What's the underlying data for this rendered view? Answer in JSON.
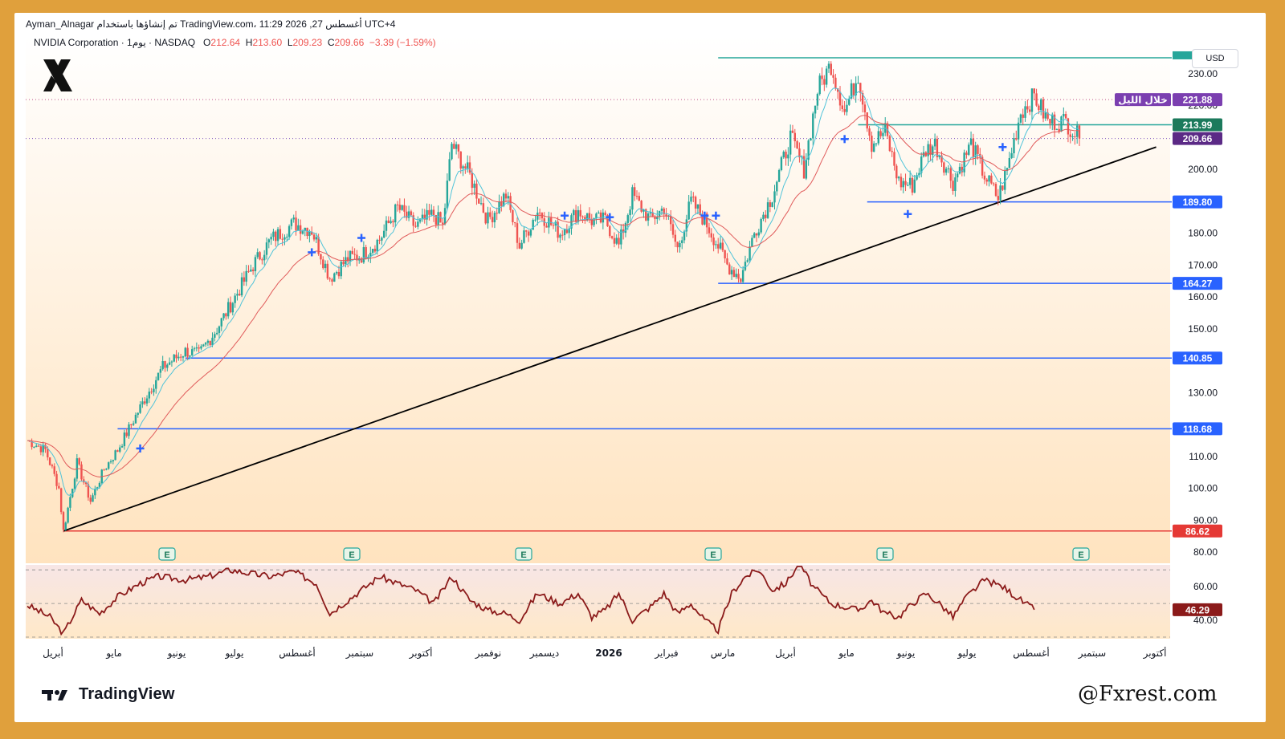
{
  "header": {
    "line1": "Ayman_Alnagar تم إنشاؤها باستخدام TradingView.com، 11:29 2026 ,27 أغسطس UTC+4",
    "symbol": "NVIDIA Corporation · 1يوم · NASDAQ",
    "o_label": "O",
    "o_value": "212.64",
    "h_label": "H",
    "h_value": "213.60",
    "l_label": "L",
    "l_value": "209.23",
    "c_label": "C",
    "c_value": "209.66",
    "change": "−3.39 (−1.59%)"
  },
  "currency": "USD",
  "branding": {
    "tradingview": "TradingView",
    "watermark": "@Fxrest.com"
  },
  "colors": {
    "up": "#26a69a",
    "down": "#ef5350",
    "ema_fast": "#4fc3d9",
    "ema_slow": "#e05a5a",
    "trendline": "#000000",
    "hline": "#2962ff",
    "rsi": "#8b1a1a",
    "support": "#e53935"
  },
  "chart_data": {
    "type": "candlestick",
    "y_axis": {
      "ylim": [
        77,
        237
      ],
      "ticks": [
        "230.00",
        "220.00",
        "200.00",
        "180.00",
        "170.00",
        "160.00",
        "150.00",
        "130.00",
        "110.00",
        "100.00",
        "90.00",
        "80.00"
      ],
      "tick_values": [
        230,
        220,
        200,
        180,
        170,
        160,
        150,
        130,
        110,
        100,
        90,
        80
      ]
    },
    "x_axis": {
      "labels": [
        "أبريل",
        "مايو",
        "يونيو",
        "يوليو",
        "أغسطس",
        "سبتمبر",
        "أكتوبر",
        "نوفمبر",
        "ديسمبر",
        "2026",
        "فبراير",
        "مارس",
        "أبريل",
        "مايو",
        "يونيو",
        "يوليو",
        "أغسطس",
        "سبتمبر",
        "أكتوبر"
      ]
    },
    "keypoints": [
      [
        0,
        115
      ],
      [
        8,
        112
      ],
      [
        14,
        100
      ],
      [
        16,
        86.6
      ],
      [
        22,
        108
      ],
      [
        28,
        96
      ],
      [
        34,
        106
      ],
      [
        40,
        112
      ],
      [
        46,
        120
      ],
      [
        52,
        128
      ],
      [
        60,
        138
      ],
      [
        70,
        143
      ],
      [
        76,
        142
      ],
      [
        84,
        150
      ],
      [
        92,
        160
      ],
      [
        100,
        170
      ],
      [
        108,
        178
      ],
      [
        118,
        183
      ],
      [
        126,
        181
      ],
      [
        134,
        166
      ],
      [
        142,
        172
      ],
      [
        148,
        173
      ],
      [
        156,
        178
      ],
      [
        164,
        188
      ],
      [
        172,
        182
      ],
      [
        180,
        186
      ],
      [
        184,
        182
      ],
      [
        188,
        208
      ],
      [
        196,
        198
      ],
      [
        204,
        184
      ],
      [
        212,
        192
      ],
      [
        218,
        176
      ],
      [
        226,
        187
      ],
      [
        236,
        180
      ],
      [
        244,
        187
      ],
      [
        250,
        184
      ],
      [
        256,
        184
      ],
      [
        262,
        176
      ],
      [
        268,
        192
      ],
      [
        276,
        184
      ],
      [
        282,
        188
      ],
      [
        288,
        175
      ],
      [
        294,
        190
      ],
      [
        300,
        184
      ],
      [
        306,
        176
      ],
      [
        310,
        170
      ],
      [
        316,
        166
      ],
      [
        322,
        180
      ],
      [
        330,
        192
      ],
      [
        338,
        210
      ],
      [
        344,
        200
      ],
      [
        350,
        225
      ],
      [
        356,
        233
      ],
      [
        362,
        218
      ],
      [
        368,
        230
      ],
      [
        374,
        208
      ],
      [
        380,
        212
      ],
      [
        386,
        196
      ],
      [
        392,
        195
      ],
      [
        398,
        206
      ],
      [
        402,
        208
      ],
      [
        410,
        196
      ],
      [
        418,
        208
      ],
      [
        424,
        198
      ],
      [
        430,
        191
      ],
      [
        434,
        200
      ],
      [
        440,
        218
      ],
      [
        446,
        223
      ],
      [
        452,
        215
      ],
      [
        460,
        215
      ],
      [
        466,
        209.7
      ]
    ],
    "series": [
      {
        "name": "EMA fast",
        "values": [
          112,
          114,
          184,
          186,
          186,
          186,
          190,
          205,
          210,
          209.66
        ]
      },
      {
        "name": "EMA slow",
        "values": [
          118,
          112,
          172,
          184,
          182,
          182,
          200,
          208,
          206,
          209.66
        ]
      }
    ],
    "price_labels": [
      {
        "value": 221.88,
        "text": "221.88",
        "tag": "خلال الليل",
        "color": "#7b3fb0"
      },
      {
        "value": 213.99,
        "text": "213.99",
        "color": "#1c7a5c"
      },
      {
        "value": 209.66,
        "text": "209.66",
        "color": "#5b2a86"
      },
      {
        "value": 189.8,
        "text": "189.80",
        "color": "#2962ff"
      },
      {
        "value": 164.27,
        "text": "164.27",
        "color": "#2962ff"
      },
      {
        "value": 140.85,
        "text": "140.85",
        "color": "#2962ff"
      },
      {
        "value": 118.68,
        "text": "118.68",
        "color": "#2962ff"
      },
      {
        "value": 86.62,
        "text": "86.62",
        "color": "#e53935"
      }
    ],
    "horizontal_levels": [
      {
        "value": 235,
        "from_bar": 306
      },
      {
        "value": 213.99,
        "from_bar": 368
      },
      {
        "value": 189.8,
        "from_bar": 372
      },
      {
        "value": 164.27,
        "from_bar": 306
      },
      {
        "value": 140.85,
        "from_bar": 70
      },
      {
        "value": 118.68,
        "from_bar": 40
      },
      {
        "value": 86.62,
        "from_bar": 16
      }
    ],
    "trendline": {
      "from": [
        16,
        86.6
      ],
      "to": [
        500,
        207
      ]
    },
    "earnings_markers": [
      "E",
      "E",
      "E",
      "E",
      "E",
      "E"
    ],
    "rsi": {
      "ylim": [
        30,
        72
      ],
      "ticks": [
        "60.00",
        "40.00"
      ],
      "tick_values": [
        60,
        40
      ],
      "levels": [
        70,
        50,
        30
      ],
      "value": 46.29,
      "value_text": "46.29",
      "keypoints": [
        [
          0,
          49
        ],
        [
          10,
          42
        ],
        [
          16,
          32
        ],
        [
          24,
          52
        ],
        [
          32,
          44
        ],
        [
          40,
          54
        ],
        [
          50,
          62
        ],
        [
          58,
          66
        ],
        [
          70,
          64
        ],
        [
          80,
          66
        ],
        [
          90,
          70
        ],
        [
          98,
          68
        ],
        [
          108,
          66
        ],
        [
          118,
          69
        ],
        [
          128,
          62
        ],
        [
          134,
          44
        ],
        [
          142,
          52
        ],
        [
          148,
          58
        ],
        [
          156,
          66
        ],
        [
          164,
          62
        ],
        [
          172,
          58
        ],
        [
          180,
          50
        ],
        [
          188,
          66
        ],
        [
          196,
          52
        ],
        [
          204,
          46
        ],
        [
          212,
          44
        ],
        [
          218,
          40
        ],
        [
          226,
          56
        ],
        [
          236,
          50
        ],
        [
          244,
          56
        ],
        [
          250,
          42
        ],
        [
          256,
          46
        ],
        [
          262,
          56
        ],
        [
          268,
          40
        ],
        [
          276,
          48
        ],
        [
          282,
          56
        ],
        [
          288,
          44
        ],
        [
          294,
          50
        ],
        [
          300,
          40
        ],
        [
          306,
          34
        ],
        [
          312,
          56
        ],
        [
          318,
          66
        ],
        [
          324,
          70
        ],
        [
          330,
          58
        ],
        [
          336,
          62
        ],
        [
          342,
          74
        ],
        [
          348,
          60
        ],
        [
          356,
          50
        ],
        [
          362,
          48
        ],
        [
          368,
          46
        ],
        [
          374,
          52
        ],
        [
          380,
          44
        ],
        [
          386,
          42
        ],
        [
          392,
          50
        ],
        [
          398,
          56
        ],
        [
          404,
          50
        ],
        [
          410,
          42
        ],
        [
          416,
          54
        ],
        [
          424,
          64
        ],
        [
          432,
          60
        ],
        [
          440,
          52
        ],
        [
          446,
          46.29
        ]
      ]
    }
  }
}
